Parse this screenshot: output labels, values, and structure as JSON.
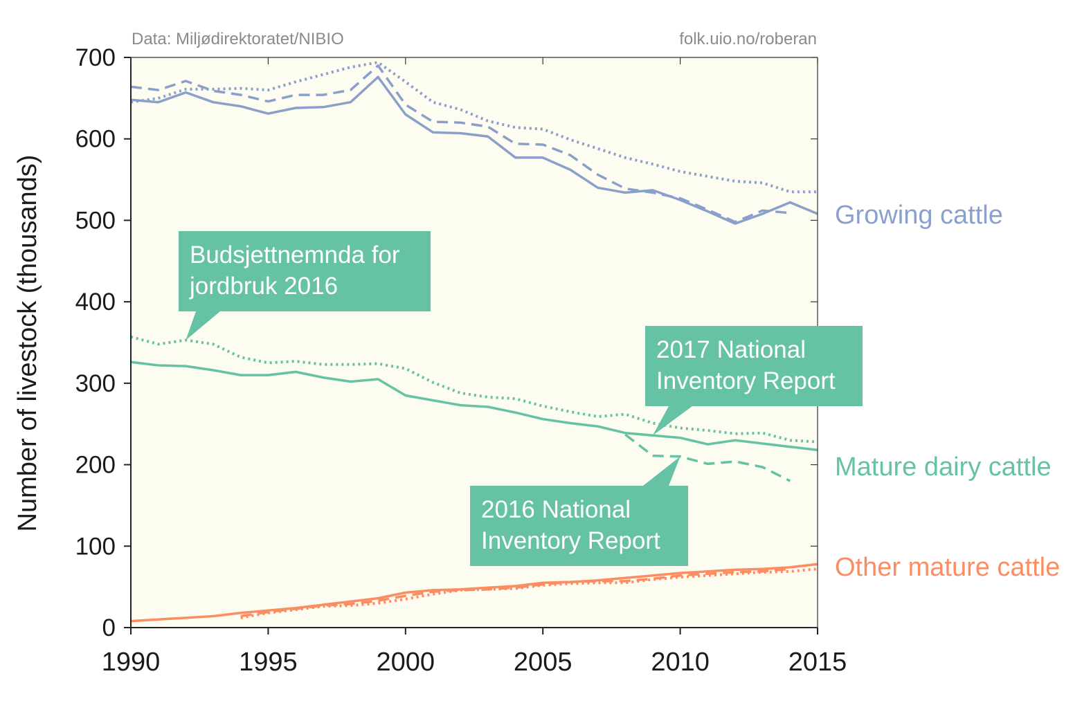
{
  "chart_data": {
    "type": "line",
    "source_left": "Data: Miljødirektoratet/NIBIO",
    "source_right": "folk.uio.no/roberan",
    "ylabel": "Number of livestock (thousands)",
    "xlabel": "",
    "xlim": [
      1990,
      2015
    ],
    "ylim": [
      0,
      700
    ],
    "xticks": [
      1990,
      1995,
      2000,
      2005,
      2010,
      2015
    ],
    "yticks": [
      0,
      100,
      200,
      300,
      400,
      500,
      600,
      700
    ],
    "grid": false,
    "background": "#fdfcf0",
    "colors": {
      "growing": "#8b9fcb",
      "dairy": "#66c2a5",
      "other": "#fc8d62",
      "callout": "#66c2a5"
    },
    "line_styles": {
      "solid": "2017 National Inventory Report",
      "dashed": "2016 National Inventory Report",
      "dotted": "Budsjettnemnda for jordbruk 2016"
    },
    "series": [
      {
        "name": "Growing cattle",
        "group": "growing",
        "style": "solid",
        "x": [
          1990,
          1991,
          1992,
          1993,
          1994,
          1995,
          1996,
          1997,
          1998,
          1999,
          2000,
          2001,
          2002,
          2003,
          2004,
          2005,
          2006,
          2007,
          2008,
          2009,
          2010,
          2011,
          2012,
          2013,
          2014,
          2015
        ],
        "y": [
          648,
          645,
          657,
          645,
          640,
          631,
          638,
          639,
          645,
          676,
          630,
          608,
          607,
          603,
          577,
          577,
          562,
          540,
          534,
          537,
          525,
          511,
          496,
          508,
          522,
          508
        ]
      },
      {
        "name": "Growing cattle",
        "group": "growing",
        "style": "dashed",
        "x": [
          1990,
          1991,
          1992,
          1993,
          1994,
          1995,
          1996,
          1997,
          1998,
          1999,
          2000,
          2001,
          2002,
          2003,
          2004,
          2005,
          2006,
          2007,
          2008,
          2009,
          2010,
          2011,
          2012,
          2013,
          2014
        ],
        "y": [
          664,
          660,
          671,
          659,
          654,
          646,
          654,
          654,
          660,
          690,
          642,
          621,
          620,
          615,
          594,
          593,
          580,
          556,
          539,
          534,
          527,
          513,
          498,
          512,
          509
        ]
      },
      {
        "name": "Growing cattle",
        "group": "growing",
        "style": "dotted",
        "x": [
          1990,
          1991,
          1992,
          1993,
          1994,
          1995,
          1996,
          1997,
          1998,
          1999,
          2000,
          2001,
          2002,
          2003,
          2004,
          2005,
          2006,
          2007,
          2008,
          2009,
          2010,
          2011,
          2012,
          2013,
          2014,
          2015
        ],
        "y": [
          645,
          650,
          661,
          661,
          662,
          660,
          670,
          679,
          688,
          694,
          670,
          645,
          636,
          622,
          614,
          612,
          599,
          588,
          577,
          569,
          560,
          554,
          548,
          546,
          535,
          535
        ]
      },
      {
        "name": "Mature dairy cattle",
        "group": "dairy",
        "style": "solid",
        "x": [
          1990,
          1991,
          1992,
          1993,
          1994,
          1995,
          1996,
          1997,
          1998,
          1999,
          2000,
          2001,
          2002,
          2003,
          2004,
          2005,
          2006,
          2007,
          2008,
          2009,
          2010,
          2011,
          2012,
          2013,
          2014,
          2015
        ],
        "y": [
          326,
          322,
          321,
          316,
          310,
          310,
          314,
          307,
          302,
          305,
          285,
          279,
          273,
          271,
          264,
          256,
          251,
          247,
          239,
          236,
          233,
          225,
          230,
          226,
          222,
          218
        ]
      },
      {
        "name": "Mature dairy cattle",
        "group": "dairy",
        "style": "dashed",
        "x": [
          2008,
          2009,
          2010,
          2011,
          2012,
          2013,
          2014
        ],
        "y": [
          237,
          211,
          210,
          201,
          204,
          197,
          180
        ]
      },
      {
        "name": "Mature dairy cattle",
        "group": "dairy",
        "style": "dotted",
        "x": [
          1990,
          1991,
          1992,
          1993,
          1994,
          1995,
          1996,
          1997,
          1998,
          1999,
          2000,
          2001,
          2002,
          2003,
          2004,
          2005,
          2006,
          2007,
          2008,
          2009,
          2010,
          2011,
          2012,
          2013,
          2014,
          2015
        ],
        "y": [
          357,
          348,
          353,
          348,
          332,
          325,
          327,
          323,
          323,
          324,
          318,
          301,
          288,
          283,
          281,
          272,
          265,
          259,
          262,
          251,
          245,
          242,
          238,
          239,
          230,
          228
        ]
      },
      {
        "name": "Other mature cattle",
        "group": "other",
        "style": "solid",
        "x": [
          1990,
          1991,
          1992,
          1993,
          1994,
          1995,
          1996,
          1997,
          1998,
          1999,
          2000,
          2001,
          2002,
          2003,
          2004,
          2005,
          2006,
          2007,
          2008,
          2009,
          2010,
          2011,
          2012,
          2013,
          2014,
          2015
        ],
        "y": [
          8,
          10,
          12,
          14,
          18,
          21,
          24,
          28,
          32,
          36,
          43,
          46,
          47,
          49,
          51,
          55,
          56,
          58,
          61,
          64,
          67,
          69,
          71,
          72,
          74,
          78
        ]
      },
      {
        "name": "Other mature cattle",
        "group": "other",
        "style": "dashed",
        "x": [
          1994,
          1995,
          1996,
          1997,
          1998,
          1999,
          2000,
          2001,
          2002,
          2003,
          2004,
          2005,
          2006,
          2007,
          2008,
          2009,
          2010,
          2011,
          2012,
          2013,
          2014
        ],
        "y": [
          14,
          19,
          23,
          27,
          29,
          33,
          39,
          44,
          46,
          47,
          49,
          53,
          56,
          57,
          57,
          60,
          64,
          66,
          68,
          69,
          72
        ]
      },
      {
        "name": "Other mature cattle",
        "group": "other",
        "style": "dotted",
        "x": [
          1994,
          1995,
          1996,
          1997,
          1998,
          1999,
          2000,
          2001,
          2002,
          2003,
          2004,
          2005,
          2006,
          2007,
          2008,
          2009,
          2010,
          2011,
          2012,
          2013,
          2014,
          2015
        ],
        "y": [
          12,
          18,
          22,
          26,
          27,
          30,
          35,
          41,
          46,
          47,
          48,
          52,
          54,
          55,
          55,
          59,
          62,
          64,
          66,
          68,
          69,
          72
        ]
      }
    ],
    "series_labels": [
      {
        "text": "Growing cattle",
        "group": "growing"
      },
      {
        "text": "Mature dairy cattle",
        "group": "dairy"
      },
      {
        "text": "Other mature cattle",
        "group": "other"
      }
    ],
    "annotations": [
      {
        "id": "budsjett",
        "lines": [
          "Budsjettnemnda for",
          "jordbruk 2016"
        ],
        "points_to": {
          "x": 1992,
          "y": 353
        }
      },
      {
        "id": "nir2017",
        "lines": [
          "2017 National",
          "Inventory Report"
        ],
        "points_to": {
          "x": 2009,
          "y": 236
        }
      },
      {
        "id": "nir2016",
        "lines": [
          "2016 National",
          "Inventory Report"
        ],
        "points_to": {
          "x": 2010,
          "y": 210
        }
      }
    ]
  }
}
